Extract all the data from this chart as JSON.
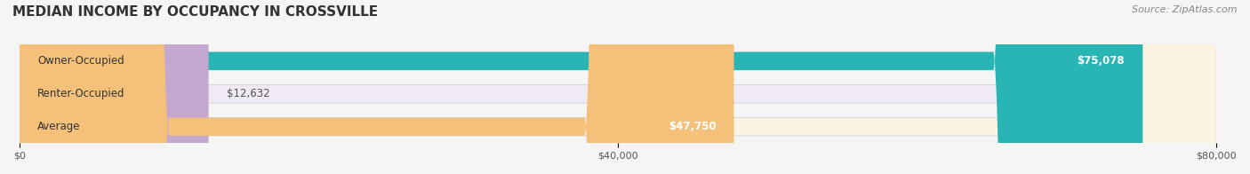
{
  "title": "MEDIAN INCOME BY OCCUPANCY IN CROSSVILLE",
  "source": "Source: ZipAtlas.com",
  "categories": [
    "Owner-Occupied",
    "Renter-Occupied",
    "Average"
  ],
  "values": [
    75078,
    12632,
    47750
  ],
  "bar_colors": [
    "#2ab5b5",
    "#c4a8d0",
    "#f5c07a"
  ],
  "bar_bg_colors": [
    "#e8f7f7",
    "#f0eaf4",
    "#fdf3e3"
  ],
  "value_labels": [
    "$75,078",
    "$12,632",
    "$47,750"
  ],
  "xlim": [
    0,
    80000
  ],
  "xticks": [
    0,
    40000,
    80000
  ],
  "xtick_labels": [
    "$0",
    "$40,000",
    "$80,000"
  ],
  "title_fontsize": 11,
  "source_fontsize": 8,
  "label_fontsize": 8.5,
  "value_fontsize": 8.5,
  "bar_height": 0.55,
  "background_color": "#f5f5f5"
}
